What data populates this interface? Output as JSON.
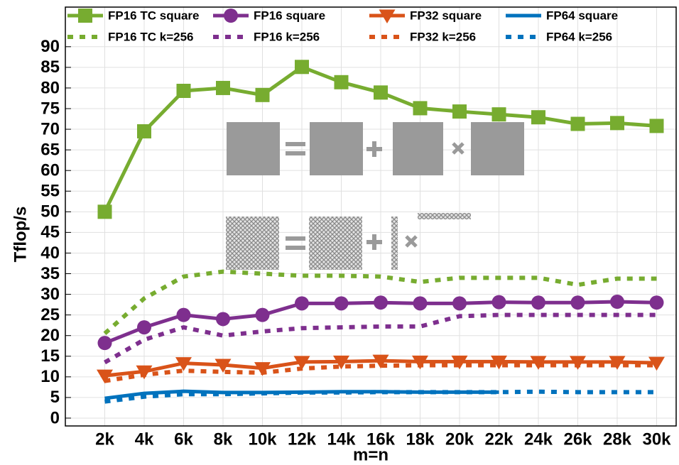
{
  "chart_data": {
    "type": "line",
    "x_label": "m=n",
    "y_label": "Tflop/s",
    "categories": [
      "2k",
      "4k",
      "6k",
      "8k",
      "10k",
      "12k",
      "14k",
      "16k",
      "18k",
      "20k",
      "22k",
      "24k",
      "26k",
      "28k",
      "30k"
    ],
    "ylim": [
      -1.9,
      99.6
    ],
    "yticks": [
      0,
      5,
      10,
      15,
      20,
      25,
      30,
      35,
      40,
      45,
      50,
      55,
      60,
      65,
      70,
      75,
      80,
      85,
      90
    ],
    "grid": true,
    "series": [
      {
        "name": "FP16 TC square",
        "color": "#77ac30",
        "style": "solid",
        "marker": "square",
        "values": [
          50,
          69.5,
          79.3,
          80,
          78.3,
          85.1,
          81.4,
          78.9,
          75.1,
          74.3,
          73.6,
          72.9,
          71.3,
          71.5,
          70.8
        ]
      },
      {
        "name": "FP16 square",
        "color": "#7e2f8e",
        "style": "solid",
        "marker": "circle",
        "values": [
          18.2,
          22,
          25,
          24,
          25,
          27.8,
          27.8,
          28,
          27.8,
          27.8,
          28.1,
          28,
          28,
          28.2,
          28
        ]
      },
      {
        "name": "FP32 square",
        "color": "#d95319",
        "style": "solid",
        "marker": "triangle-down",
        "values": [
          10.3,
          11.3,
          13.3,
          12.9,
          12.1,
          13.6,
          13.7,
          13.9,
          13.7,
          13.7,
          13.7,
          13.6,
          13.6,
          13.6,
          13.4
        ]
      },
      {
        "name": "FP64 square",
        "color": "#0072bd",
        "style": "solid",
        "values": [
          4.8,
          6,
          6.5,
          6.2,
          6.2,
          6.3,
          6.4,
          6.4,
          6.3,
          6.3,
          6.3,
          null,
          null,
          null,
          null
        ]
      },
      {
        "name": "FP16 TC k=256",
        "color": "#77ac30",
        "style": "dotted",
        "values": [
          20.5,
          29,
          34.3,
          35.5,
          35,
          34.5,
          34.5,
          34.3,
          33,
          34,
          34,
          34,
          32.3,
          33.8,
          33.8
        ]
      },
      {
        "name": "FP16 k=256",
        "color": "#7e2f8e",
        "style": "dotted",
        "values": [
          13.5,
          19,
          22,
          20,
          21,
          21.8,
          22,
          22.2,
          22.2,
          24.7,
          25,
          25,
          25,
          25,
          25
        ]
      },
      {
        "name": "FP32 k=256",
        "color": "#d95319",
        "style": "dotted",
        "values": [
          9,
          10.5,
          11.5,
          11.2,
          11,
          12,
          12.5,
          12.7,
          12.8,
          12.8,
          12.8,
          12.8,
          12.8,
          12.8,
          12.8
        ]
      },
      {
        "name": "FP64 k=256",
        "color": "#0072bd",
        "style": "dotted",
        "values": [
          4,
          5.2,
          5.8,
          5.8,
          6,
          6.2,
          6.2,
          6.3,
          6.3,
          6.3,
          6.3,
          6.4,
          6.3,
          6.3,
          6.3
        ]
      }
    ]
  }
}
